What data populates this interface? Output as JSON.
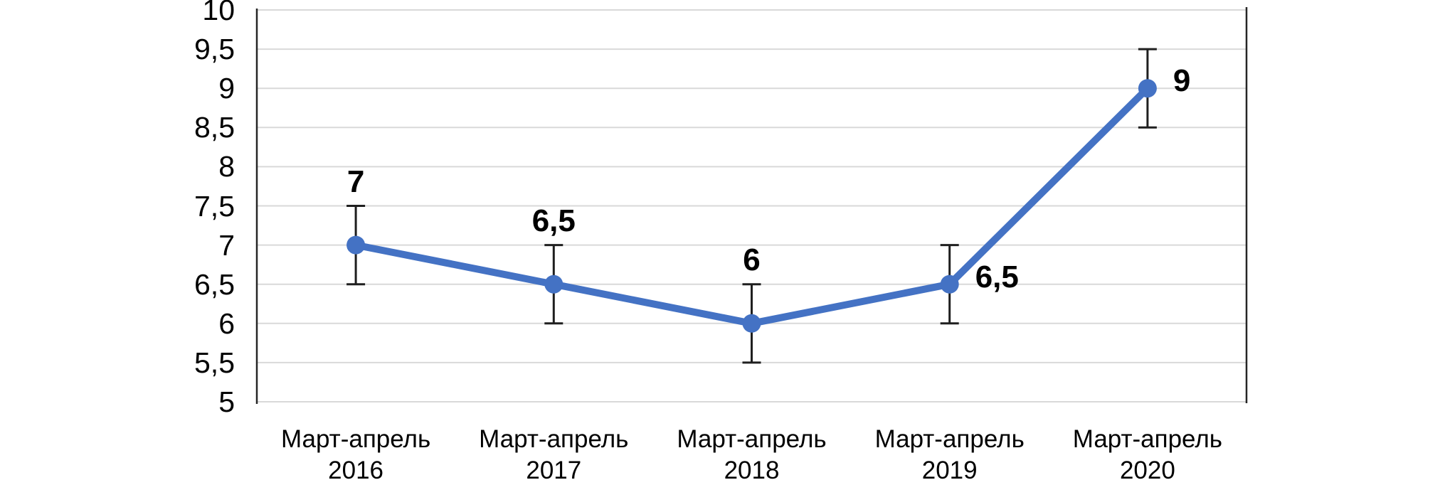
{
  "chart_data": {
    "type": "line",
    "title": "",
    "xlabel": "",
    "ylabel": "",
    "categories": [
      {
        "period": "Март-апрель",
        "year": "2016"
      },
      {
        "period": "Март-апрель",
        "year": "2017"
      },
      {
        "period": "Март-апрель",
        "year": "2018"
      },
      {
        "period": "Март-апрель",
        "year": "2019"
      },
      {
        "period": "Март-апрель",
        "year": "2020"
      }
    ],
    "series": [
      {
        "name": "series-1",
        "values": [
          7,
          6.5,
          6,
          6.5,
          9
        ],
        "data_labels": [
          "7",
          "6,5",
          "6",
          "6,5",
          "9"
        ],
        "data_label_positions": [
          "above",
          "above",
          "above",
          "right",
          "right"
        ],
        "error_bar": 0.5
      }
    ],
    "y_ticks": [
      "10",
      "9,5",
      "9",
      "8,5",
      "8",
      "7,5",
      "7",
      "6,5",
      "6",
      "5,5",
      "5"
    ],
    "y_tick_values": [
      10,
      9.5,
      9,
      8.5,
      8,
      7.5,
      7,
      6.5,
      6,
      5.5,
      5
    ],
    "ylim": [
      5,
      10
    ],
    "grid": "horizontal",
    "legend": "none",
    "colors": {
      "line": "#4472C4",
      "marker": "#4472C4",
      "gridline": "#D9D9D9",
      "axis": "#262626",
      "error_bar": "#1F1F1F",
      "text": "#000000",
      "background": "#FFFFFF"
    }
  }
}
